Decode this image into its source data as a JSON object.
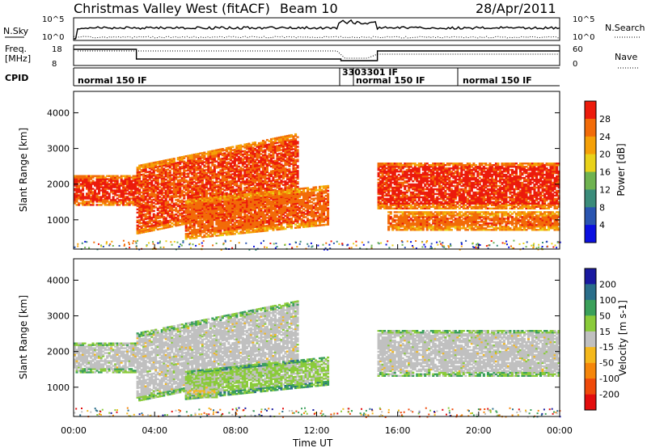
{
  "header": {
    "station": "Christmas Valley West (fitACF)",
    "beam": "Beam 10",
    "date": "28/Apr/2011"
  },
  "panels": {
    "nsky": {
      "label": "N.Sky",
      "right_label": "N.Search",
      "left_ticks": [
        "10^5",
        "10^0"
      ],
      "right_ticks": [
        "10^5",
        "10^0"
      ]
    },
    "freq": {
      "label": "Freq.",
      "unit": "[MHz]",
      "right_label": "Nave",
      "left_ticks": [
        "18",
        "8"
      ],
      "right_ticks": [
        "60",
        "0"
      ]
    },
    "cpid": {
      "label": "CPID",
      "segments": [
        {
          "text": "normal 150 IF"
        },
        {
          "text": "3303301 IF"
        },
        {
          "text": "normal 150 IF"
        },
        {
          "text": "normal 150 IF"
        }
      ]
    },
    "power": {
      "ylabel": "Slant Range [km]",
      "colorbar_label": "Power [dB]"
    },
    "velocity": {
      "ylabel": "Slant Range [km]",
      "colorbar_label": "Velocity [m s-1]"
    }
  },
  "chart_data": [
    {
      "type": "heatmap",
      "title": "Power",
      "xlabel": "Time UT",
      "ylabel": "Slant Range [km]",
      "xlim": [
        0,
        24
      ],
      "ylim": [
        180,
        4600
      ],
      "x_ticks": [
        "00:00",
        "04:00",
        "08:00",
        "12:00",
        "16:00",
        "20:00",
        "00:00"
      ],
      "y_ticks": [
        1000,
        2000,
        3000,
        4000
      ],
      "colorbar": {
        "label": "Power [dB]",
        "ticks": [
          4,
          8,
          12,
          16,
          20,
          24,
          28
        ],
        "range": [
          0,
          32
        ],
        "colors": [
          "#0b10e0",
          "#2a55b0",
          "#3b8c7a",
          "#6fb350",
          "#e9d21a",
          "#f5a007",
          "#f26b08",
          "#ec1b0c"
        ]
      },
      "echo_bands": [
        {
          "name": "main band early",
          "t_start": 0.0,
          "t_end": 3.1,
          "range_low": 1400,
          "range_high": 2250,
          "value": 29
        },
        {
          "name": "rising band",
          "t_start": 3.1,
          "t_end": 11.0,
          "range_low": 900,
          "range_high": 2800,
          "value": 28
        },
        {
          "name": "lower band",
          "t_start": 5.5,
          "t_end": 12.5,
          "range_low": 600,
          "range_high": 1700,
          "value": 27
        },
        {
          "name": "late band",
          "t_start": 15.0,
          "t_end": 24.0,
          "range_low": 1300,
          "range_high": 2600,
          "value": 29
        },
        {
          "name": "late lower band",
          "t_start": 15.5,
          "t_end": 24.0,
          "range_low": 700,
          "range_high": 1200,
          "value": 27
        }
      ]
    },
    {
      "type": "heatmap",
      "title": "Velocity",
      "xlabel": "Time UT",
      "ylabel": "Slant Range [km]",
      "xlim": [
        0,
        24
      ],
      "ylim": [
        180,
        4600
      ],
      "x_ticks": [
        "00:00",
        "04:00",
        "08:00",
        "12:00",
        "16:00",
        "20:00",
        "00:00"
      ],
      "y_ticks": [
        1000,
        2000,
        3000,
        4000
      ],
      "colorbar": {
        "label": "Velocity [m s-1]",
        "ticks": [
          200,
          100,
          50,
          15,
          -15,
          -50,
          -100,
          -200
        ],
        "range": [
          -250,
          250
        ],
        "colors": [
          "#1a1aa0",
          "#2a6e8a",
          "#3aa05a",
          "#8acb3a",
          "#c0c0c0",
          "#f4b81c",
          "#f5860a",
          "#ef4a0a",
          "#e30d0d"
        ]
      },
      "echo_bands": [
        {
          "name": "main band early",
          "t_start": 0.0,
          "t_end": 3.1,
          "range_low": 1400,
          "range_high": 2250,
          "value": 0
        },
        {
          "name": "rising band",
          "t_start": 3.1,
          "t_end": 11.0,
          "range_low": 900,
          "range_high": 2800,
          "value": 0
        },
        {
          "name": "lower band",
          "t_start": 5.5,
          "t_end": 12.5,
          "range_low": 800,
          "range_high": 1600,
          "value": -35
        },
        {
          "name": "green patch",
          "t_start": 5.5,
          "t_end": 7.0,
          "range_low": 700,
          "range_high": 1000,
          "value": 40
        },
        {
          "name": "late band",
          "t_start": 15.0,
          "t_end": 24.0,
          "range_low": 1300,
          "range_high": 2600,
          "value": 0
        }
      ]
    }
  ]
}
